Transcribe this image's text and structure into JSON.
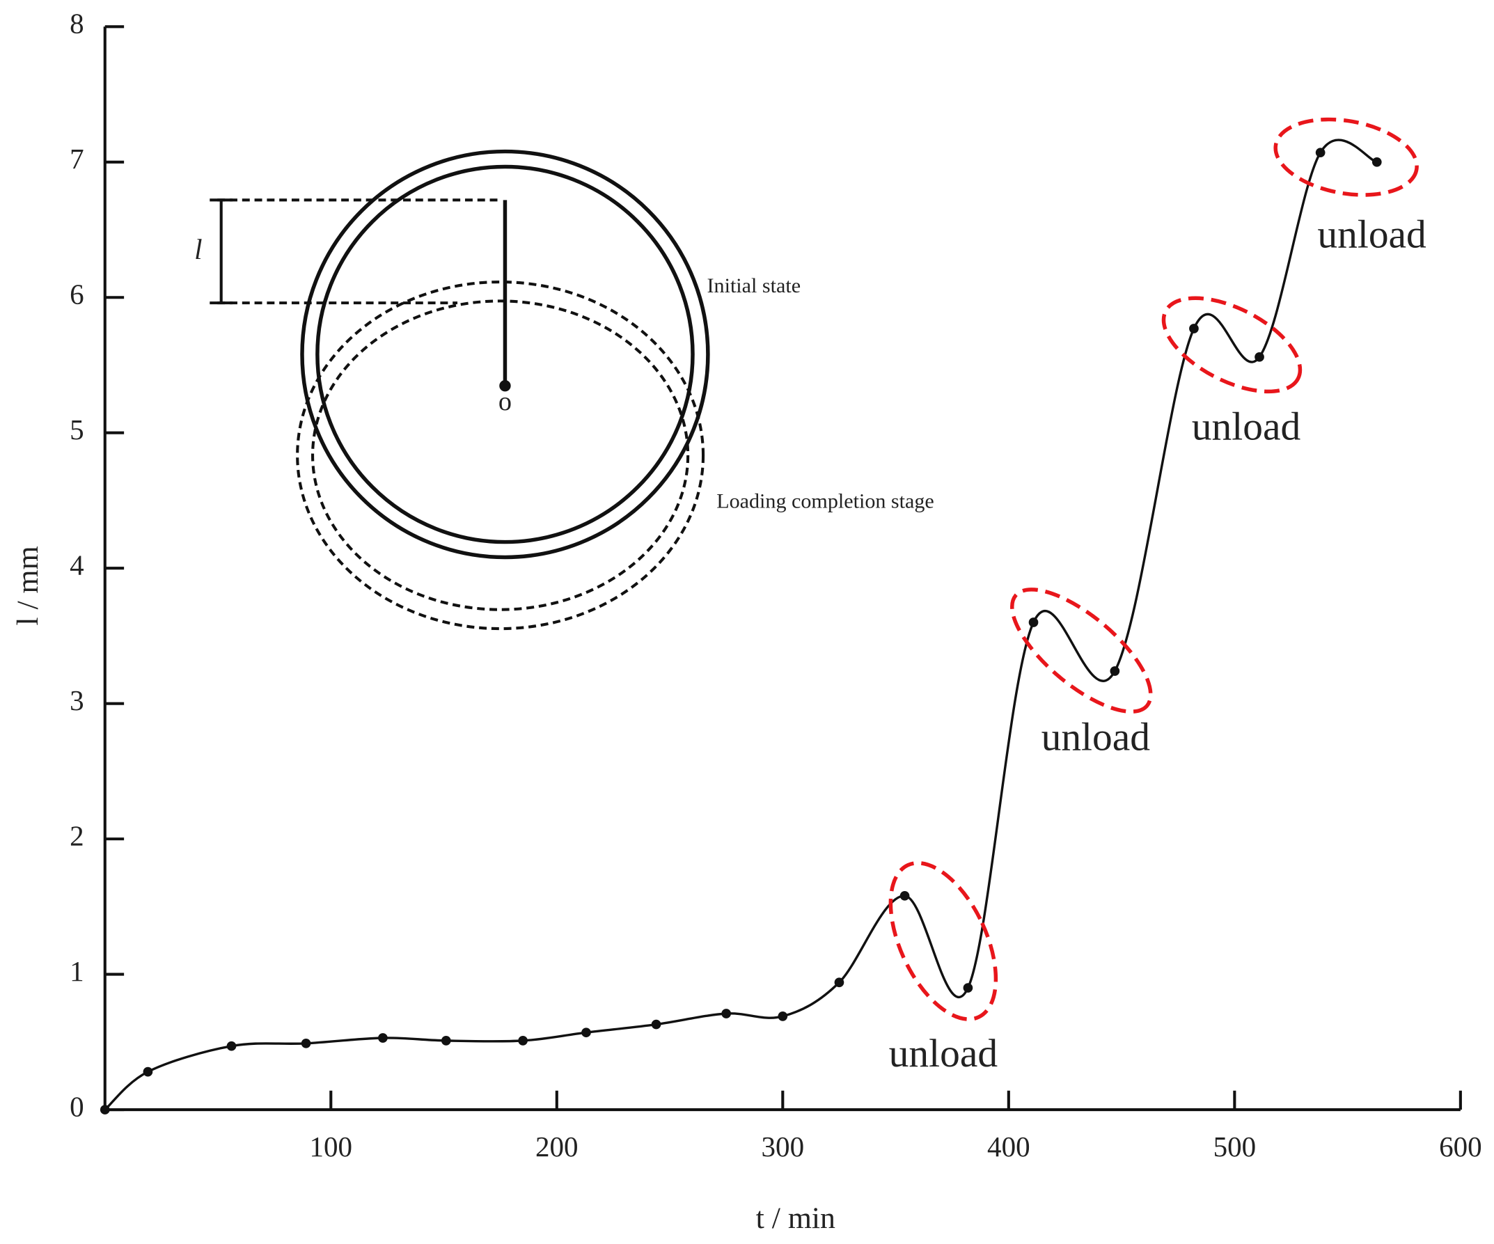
{
  "chart_data": {
    "type": "line",
    "x_label": "t / min",
    "y_label": "l / mm",
    "x": [
      0,
      19,
      56,
      89,
      123,
      151,
      185,
      213,
      244,
      275,
      300,
      325,
      354,
      382,
      411,
      447,
      482,
      511,
      538,
      563
    ],
    "values": [
      0,
      0.28,
      0.47,
      0.49,
      0.53,
      0.51,
      0.51,
      0.57,
      0.63,
      0.71,
      0.69,
      0.94,
      1.58,
      0.9,
      3.6,
      3.24,
      5.77,
      5.56,
      7.07,
      7.0
    ],
    "color": "#111111",
    "xlim": [
      0,
      600
    ],
    "xticks": [
      100,
      200,
      300,
      400,
      500,
      600
    ],
    "ylim": [
      0,
      8
    ],
    "yticks": [
      0,
      1,
      2,
      3,
      4,
      5,
      6,
      7,
      8
    ],
    "annotations": [
      "unload",
      "unload",
      "unload",
      "unload"
    ],
    "annotation_color": "#e8161b",
    "inset": {
      "length_label": "l",
      "center_label": "o",
      "initial_label": "Initial state",
      "loaded_label": "Loading completion stage"
    }
  }
}
